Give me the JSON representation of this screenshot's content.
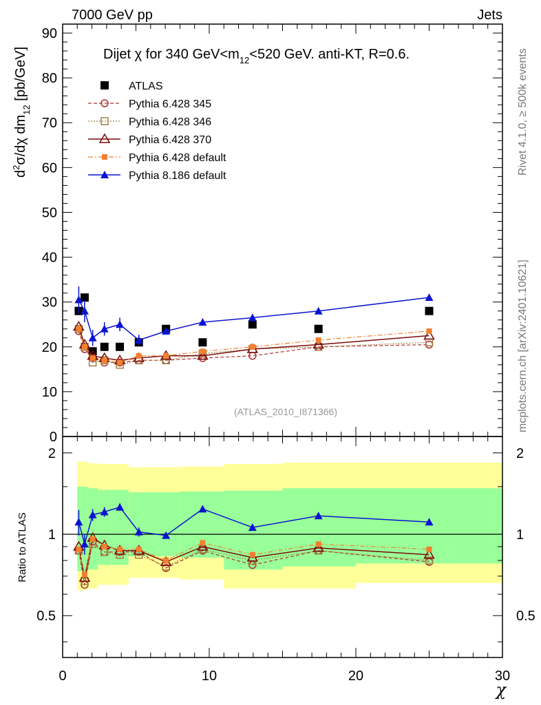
{
  "header": {
    "left": "7000 GeV pp",
    "right": "Jets"
  },
  "side_labels": {
    "rivet": "Rivet 4.1.0, ≥ 500k events",
    "mcplots": "mcplots.cern.ch [arXiv:2401.10621]"
  },
  "colors": {
    "atlas": "#000000",
    "p345": "#b03030",
    "p346": "#a08040",
    "p370": "#7a0a0a",
    "p6def": "#f28030",
    "p8def": "#0a14d0",
    "band_outer": "#ffff99",
    "band_inner": "#99ff99"
  },
  "chart_data": [
    {
      "type": "scatter",
      "title": "Dijet χ for 340 GeV<m12<520 GeV.  anti-KT, R=0.6.",
      "title_parts": {
        "a": "Dijet ",
        "chi": "χ",
        "b": " for 340 GeV<m",
        "sub": "12",
        "c": "<520 GeV.  anti-KT, R=0.6."
      },
      "ylabel": "d²σ/dχ dm12 [pb/GeV]",
      "ylabel_parts": {
        "d1": "d",
        "sup": "2",
        "body": "σ/dχ dm",
        "sub": "12",
        "unit": " [pb/GeV]"
      },
      "watermark": "(ATLAS_2010_I871366)",
      "xlim": [
        0,
        30
      ],
      "ylim": [
        0,
        92
      ],
      "yticks": [
        0,
        10,
        20,
        30,
        40,
        50,
        60,
        70,
        80,
        90
      ],
      "x": [
        1.1,
        1.5,
        2.05,
        2.85,
        3.9,
        5.2,
        7.05,
        9.55,
        12.95,
        17.45,
        25.0
      ],
      "series": [
        {
          "key": "atlas",
          "name": "ATLAS",
          "values": [
            28,
            31,
            19,
            20,
            20,
            21,
            24,
            21,
            25,
            24,
            28
          ]
        },
        {
          "key": "p345",
          "name": "Pythia 6.428 345",
          "values": [
            23.5,
            19.5,
            17.5,
            16.5,
            16.5,
            17,
            17,
            17.5,
            18,
            20,
            20.5
          ]
        },
        {
          "key": "p346",
          "name": "Pythia 6.428 346",
          "values": [
            24,
            20,
            16.5,
            17,
            16,
            17,
            17,
            18.5,
            19.5,
            20,
            21
          ]
        },
        {
          "key": "p370",
          "name": "Pythia 6.428 370",
          "values": [
            24.5,
            20.5,
            18,
            17.5,
            17,
            17.5,
            18,
            18,
            19.5,
            20.5,
            22.5
          ]
        },
        {
          "key": "p6def",
          "name": "Pythia 6.428 default",
          "values": [
            24,
            20,
            17.5,
            17,
            16.5,
            18,
            18,
            19,
            20,
            21.5,
            23.5
          ]
        },
        {
          "key": "p8def",
          "name": "Pythia 8.186 default",
          "values": [
            30.5,
            28,
            22,
            24,
            25,
            21.5,
            23.5,
            25.5,
            26.5,
            28,
            31
          ]
        }
      ],
      "p8_errors": [
        3,
        2.5,
        1.8,
        1.5,
        1.5,
        1.2,
        0.8,
        0.8,
        0.8,
        0.7,
        0.6
      ]
    },
    {
      "type": "line",
      "ylabel": "Ratio to ATLAS",
      "xlabel": "χ",
      "xlim": [
        0,
        30
      ],
      "ylim": [
        0.35,
        2.3
      ],
      "xticks": [
        0,
        10,
        20,
        30
      ],
      "yticks": [
        0.5,
        1,
        2
      ],
      "band_edges": [
        1,
        1.3,
        1.7,
        2.4,
        3.3,
        4.5,
        8,
        11,
        15,
        20,
        30
      ],
      "band_outer_lo": [
        0.62,
        0.62,
        0.63,
        0.65,
        0.65,
        0.69,
        0.68,
        0.63,
        0.63,
        0.66,
        0.1
      ],
      "band_outer_hi": [
        1.86,
        1.86,
        1.83,
        1.82,
        1.82,
        1.77,
        1.78,
        1.82,
        1.84,
        1.84,
        1.97
      ],
      "band_inner_lo": [
        0.73,
        0.73,
        0.74,
        0.77,
        0.77,
        0.83,
        0.82,
        0.74,
        0.76,
        0.78,
        0.53
      ],
      "band_inner_hi": [
        1.5,
        1.5,
        1.48,
        1.46,
        1.46,
        1.43,
        1.44,
        1.45,
        1.48,
        1.48,
        1.59
      ],
      "series": [
        {
          "key": "p345",
          "values": [
            0.87,
            0.65,
            0.94,
            0.86,
            0.86,
            0.86,
            0.75,
            0.87,
            0.77,
            0.87,
            0.79
          ]
        },
        {
          "key": "p346",
          "values": [
            0.87,
            0.67,
            0.92,
            0.86,
            0.84,
            0.84,
            0.76,
            0.88,
            0.8,
            0.87,
            0.8
          ]
        },
        {
          "key": "p370",
          "values": [
            0.9,
            0.69,
            0.97,
            0.91,
            0.87,
            0.87,
            0.79,
            0.9,
            0.82,
            0.89,
            0.84
          ]
        },
        {
          "key": "p6def",
          "values": [
            0.88,
            0.71,
            0.96,
            0.9,
            0.88,
            0.88,
            0.8,
            0.93,
            0.84,
            0.92,
            0.88
          ]
        },
        {
          "key": "p8def",
          "values": [
            1.11,
            0.92,
            1.18,
            1.21,
            1.26,
            1.02,
            0.99,
            1.24,
            1.06,
            1.17,
            1.11
          ]
        }
      ],
      "p8_errors": [
        0.12,
        0.08,
        0.06,
        0.05,
        0.04,
        0.04,
        0.03,
        0.03,
        0.03,
        0.03,
        0.03
      ]
    }
  ]
}
